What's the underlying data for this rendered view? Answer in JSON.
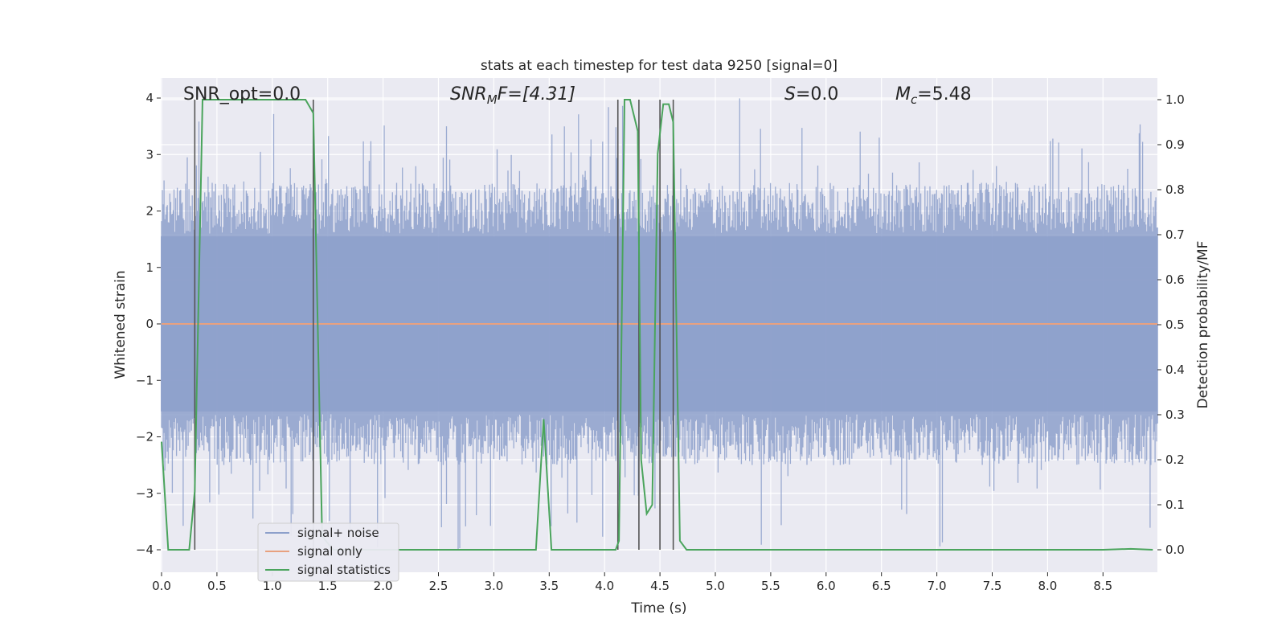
{
  "chart_data": {
    "type": "line",
    "title": "stats at each timestep for test data 9250 [signal=0]",
    "xlabel": "Time (s)",
    "ylabel_left": "Whitened strain",
    "ylabel_right": "Detection probability/MF",
    "xlim": [
      0.0,
      9.0
    ],
    "ylim_left": [
      -4.4,
      4.35
    ],
    "ylim_right": [
      -0.05,
      1.05
    ],
    "x_ticks": [
      0.0,
      0.5,
      1.0,
      1.5,
      2.0,
      2.5,
      3.0,
      3.5,
      4.0,
      4.5,
      5.0,
      5.5,
      6.0,
      6.5,
      7.0,
      7.5,
      8.0,
      8.5
    ],
    "x_tick_labels": [
      "0.0",
      "0.5",
      "1.0",
      "1.5",
      "2.0",
      "2.5",
      "3.0",
      "3.5",
      "4.0",
      "4.5",
      "5.0",
      "5.5",
      "6.0",
      "6.5",
      "7.0",
      "7.5",
      "8.0",
      "8.5"
    ],
    "y_left_ticks": [
      4,
      3,
      2,
      1,
      0,
      -1,
      -2,
      -3,
      -4
    ],
    "y_left_tick_labels": [
      "4",
      "3",
      "2",
      "1",
      "0",
      "−1",
      "−2",
      "−3",
      "−4"
    ],
    "y_right_ticks": [
      1.0,
      0.9,
      0.8,
      0.7,
      0.6,
      0.5,
      0.4,
      0.3,
      0.2,
      0.1,
      0.0
    ],
    "y_right_tick_labels": [
      "1.0",
      "0.9",
      "0.8",
      "0.7",
      "0.6",
      "0.5",
      "0.4",
      "0.3",
      "0.2",
      "0.1",
      "0.0"
    ],
    "grid": true,
    "annotations": {
      "snr_opt": "SNR_opt=0.0",
      "snr_mf_prefix": "SNR",
      "snr_mf_sub": "M",
      "snr_mf_suffix": "F=[4.31]",
      "s_italic": "S",
      "s_value": "=0.0",
      "mc_base": "M",
      "mc_sub": "c",
      "mc_value": "=5.48"
    },
    "legend": {
      "position": "lower-left",
      "entries": [
        "signal+ noise",
        "signal only",
        "signal statistics"
      ]
    },
    "colors": {
      "noise": "#8da0cb",
      "signal": "#e8a17f",
      "statistics": "#4aa45c",
      "vlines": "#555555",
      "plot_bg": "#eaeaf2",
      "grid": "#ffffff"
    },
    "series": [
      {
        "name": "signal+ noise",
        "axis": "left",
        "style": "noise",
        "envelope_typical": 1.6,
        "spike_max": 4.0,
        "spike_min": -4.0
      },
      {
        "name": "signal only",
        "axis": "left",
        "x": [
          0.0,
          9.0
        ],
        "y": [
          0.0,
          0.0
        ]
      },
      {
        "name": "signal statistics",
        "axis": "right",
        "x": [
          0.0,
          0.06,
          0.25,
          0.3,
          0.37,
          0.42,
          0.6,
          1.0,
          1.3,
          1.37,
          1.45,
          1.55,
          2.0,
          3.0,
          3.38,
          3.45,
          3.52,
          3.6,
          4.0,
          4.1,
          4.13,
          4.18,
          4.23,
          4.3,
          4.33,
          4.38,
          4.43,
          4.48,
          4.53,
          4.58,
          4.62,
          4.68,
          4.74,
          4.8,
          5.0,
          6.0,
          7.0,
          8.0,
          8.5,
          8.75,
          8.95
        ],
        "y": [
          0.24,
          0.0,
          0.0,
          0.13,
          1.0,
          1.0,
          1.0,
          1.0,
          1.0,
          0.97,
          0.03,
          0.0,
          0.0,
          0.0,
          0.0,
          0.29,
          0.0,
          0.0,
          0.0,
          0.0,
          0.02,
          1.0,
          1.0,
          0.93,
          0.2,
          0.08,
          0.1,
          0.88,
          0.99,
          0.99,
          0.95,
          0.02,
          0.0,
          0.0,
          0.0,
          0.0,
          0.0,
          0.0,
          0.0,
          0.002,
          0.0
        ]
      }
    ],
    "vertical_lines_x": [
      0.3,
      1.37,
      4.12,
      4.31,
      4.5,
      4.62
    ]
  }
}
